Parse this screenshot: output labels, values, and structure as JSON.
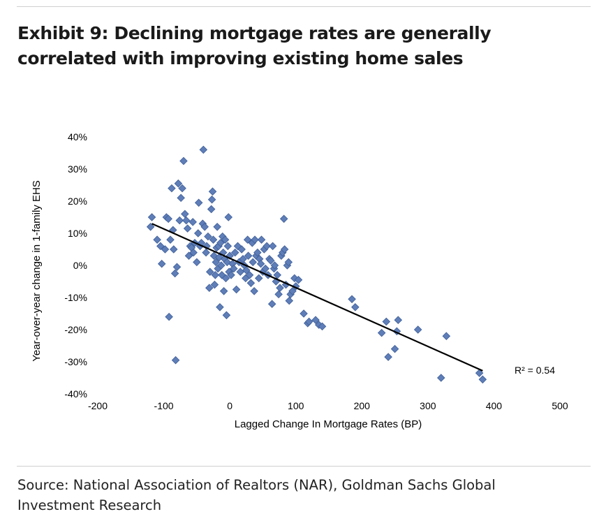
{
  "header": {
    "title_line1": "Exhibit 9: Declining mortgage rates are generally",
    "title_line2": "correlated with improving existing home sales"
  },
  "footer": {
    "source_line1": "Source: National Association of Realtors (NAR), Goldman Sachs Global",
    "source_line2": "Investment Research"
  },
  "colors": {
    "marker": "#5f7eb8",
    "marker_edge": "#3d5e98",
    "trendline": "#000000"
  },
  "chart_data": {
    "type": "scatter",
    "title": "Exhibit 9: Declining mortgage rates are generally correlated with improving existing home sales",
    "xlabel": "Lagged Change In Mortgage Rates (BP)",
    "ylabel": "Year-over-year change in 1-family EHS",
    "xlim": [
      -200,
      500
    ],
    "ylim": [
      -40,
      40
    ],
    "x_ticks": [
      -200,
      -100,
      0,
      100,
      200,
      300,
      400,
      500
    ],
    "y_ticks": [
      -40,
      -30,
      -20,
      -10,
      0,
      10,
      20,
      30,
      40
    ],
    "x_tick_labels": [
      "-200",
      "-100",
      "0",
      "100",
      "200",
      "300",
      "400",
      "500"
    ],
    "y_tick_labels": [
      "-40%",
      "-30%",
      "-20%",
      "-10%",
      "0%",
      "10%",
      "20%",
      "30%",
      "40%"
    ],
    "grid": false,
    "legend": "none",
    "trendline": {
      "x": [
        -118,
        383
      ],
      "y": [
        13,
        -32.8
      ]
    },
    "annotation": "R² = 0.54",
    "points": [
      [
        -118,
        15
      ],
      [
        -120,
        12
      ],
      [
        -110,
        8
      ],
      [
        -105,
        6
      ],
      [
        -103,
        0.5
      ],
      [
        -98,
        5
      ],
      [
        -96,
        15
      ],
      [
        -93,
        14.5
      ],
      [
        -92,
        -16
      ],
      [
        -90,
        8
      ],
      [
        -88,
        24
      ],
      [
        -86,
        11
      ],
      [
        -85,
        5
      ],
      [
        -83,
        -2.5
      ],
      [
        -82,
        -29.5
      ],
      [
        -80,
        -0.5
      ],
      [
        -78,
        25.5
      ],
      [
        -76,
        14
      ],
      [
        -74,
        21
      ],
      [
        -72,
        24
      ],
      [
        -70,
        32.5
      ],
      [
        -68,
        16
      ],
      [
        -66,
        14
      ],
      [
        -64,
        11.5
      ],
      [
        -62,
        3
      ],
      [
        -60,
        6
      ],
      [
        -58,
        5.5
      ],
      [
        -56,
        13.5
      ],
      [
        -55,
        4
      ],
      [
        -53,
        7
      ],
      [
        -50,
        1
      ],
      [
        -48,
        10
      ],
      [
        -47,
        19.5
      ],
      [
        -45,
        6
      ],
      [
        -43,
        7
      ],
      [
        -41,
        13
      ],
      [
        -40,
        36
      ],
      [
        -38,
        12
      ],
      [
        -36,
        4
      ],
      [
        -35,
        6
      ],
      [
        -33,
        9
      ],
      [
        -31,
        -7
      ],
      [
        -30,
        -2
      ],
      [
        -28,
        17.5
      ],
      [
        -27,
        20.5
      ],
      [
        -26,
        23
      ],
      [
        -25,
        8
      ],
      [
        -24,
        3
      ],
      [
        -23,
        -6
      ],
      [
        -22,
        -3
      ],
      [
        -21,
        1
      ],
      [
        -20,
        5.5
      ],
      [
        -19,
        12
      ],
      [
        -18,
        -1
      ],
      [
        -17,
        6
      ],
      [
        -16,
        2.5
      ],
      [
        -15,
        -13
      ],
      [
        -14,
        7
      ],
      [
        -13,
        0
      ],
      [
        -12,
        -3
      ],
      [
        -11,
        9
      ],
      [
        -10,
        4
      ],
      [
        -9,
        -8
      ],
      [
        -8,
        2
      ],
      [
        -7,
        8
      ],
      [
        -6,
        -4
      ],
      [
        -5,
        -15.5
      ],
      [
        -4,
        1
      ],
      [
        -3,
        6
      ],
      [
        -2,
        15
      ],
      [
        -1,
        -2
      ],
      [
        0,
        3
      ],
      [
        2,
        -3
      ],
      [
        4,
        0.5
      ],
      [
        6,
        -1
      ],
      [
        8,
        4
      ],
      [
        10,
        -7.5
      ],
      [
        12,
        6
      ],
      [
        14,
        1
      ],
      [
        16,
        -2
      ],
      [
        18,
        5
      ],
      [
        20,
        2
      ],
      [
        22,
        0
      ],
      [
        24,
        -4
      ],
      [
        25,
        -1.5
      ],
      [
        27,
        8
      ],
      [
        28,
        3
      ],
      [
        30,
        -3
      ],
      [
        32,
        -5.5
      ],
      [
        34,
        7
      ],
      [
        35,
        1
      ],
      [
        37,
        -8
      ],
      [
        38,
        8
      ],
      [
        40,
        3
      ],
      [
        42,
        4
      ],
      [
        44,
        -4
      ],
      [
        45,
        2
      ],
      [
        47,
        0.5
      ],
      [
        48,
        8
      ],
      [
        50,
        -2
      ],
      [
        52,
        5
      ],
      [
        54,
        -1
      ],
      [
        56,
        6
      ],
      [
        58,
        -3
      ],
      [
        60,
        2
      ],
      [
        62,
        1.5
      ],
      [
        64,
        -12
      ],
      [
        65,
        6
      ],
      [
        67,
        -1
      ],
      [
        68,
        0
      ],
      [
        70,
        -5
      ],
      [
        72,
        -3
      ],
      [
        74,
        -9
      ],
      [
        76,
        -7
      ],
      [
        78,
        3
      ],
      [
        80,
        4
      ],
      [
        82,
        14.5
      ],
      [
        83,
        5
      ],
      [
        85,
        -6
      ],
      [
        87,
        0
      ],
      [
        89,
        1
      ],
      [
        90,
        -11
      ],
      [
        92,
        -9
      ],
      [
        95,
        -8
      ],
      [
        98,
        -4
      ],
      [
        100,
        -6.5
      ],
      [
        104,
        -4.5
      ],
      [
        112,
        -15
      ],
      [
        118,
        -18
      ],
      [
        120,
        -17.5
      ],
      [
        130,
        -17
      ],
      [
        135,
        -18.5
      ],
      [
        140,
        -19
      ],
      [
        185,
        -10.5
      ],
      [
        190,
        -13
      ],
      [
        230,
        -21
      ],
      [
        237,
        -17.5
      ],
      [
        240,
        -28.5
      ],
      [
        250,
        -26
      ],
      [
        253,
        -20.5
      ],
      [
        255,
        -17
      ],
      [
        285,
        -20
      ],
      [
        320,
        -35
      ],
      [
        328,
        -22
      ],
      [
        378,
        -33.5
      ],
      [
        383,
        -35.5
      ]
    ]
  }
}
